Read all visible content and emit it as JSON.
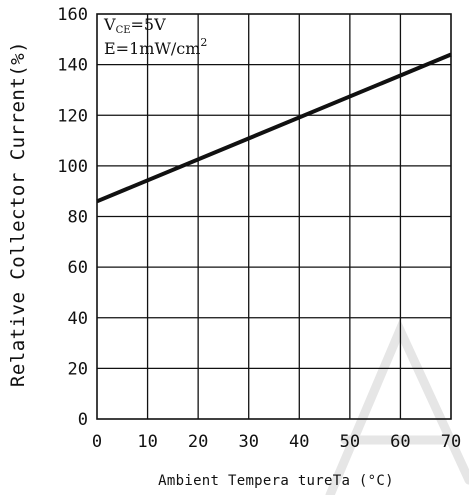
{
  "chart_data": {
    "type": "line",
    "xlabel": "Ambient Tempera tureTa (°C)",
    "ylabel": "Relative Collector Current(%)",
    "xlim": [
      0,
      70
    ],
    "ylim": [
      0,
      160
    ],
    "x_ticks": [
      0,
      10,
      20,
      30,
      40,
      50,
      60,
      70
    ],
    "y_ticks": [
      0,
      20,
      40,
      60,
      80,
      100,
      120,
      140,
      160
    ],
    "grid": true,
    "annotations": {
      "line1_main": "V",
      "line1_sub": "CE",
      "line1_rest": "=5V",
      "line2_main": "E=1mW/cm",
      "line2_sup": "2"
    },
    "series": [
      {
        "x": [
          0,
          70
        ],
        "y": [
          86,
          144
        ]
      }
    ]
  }
}
